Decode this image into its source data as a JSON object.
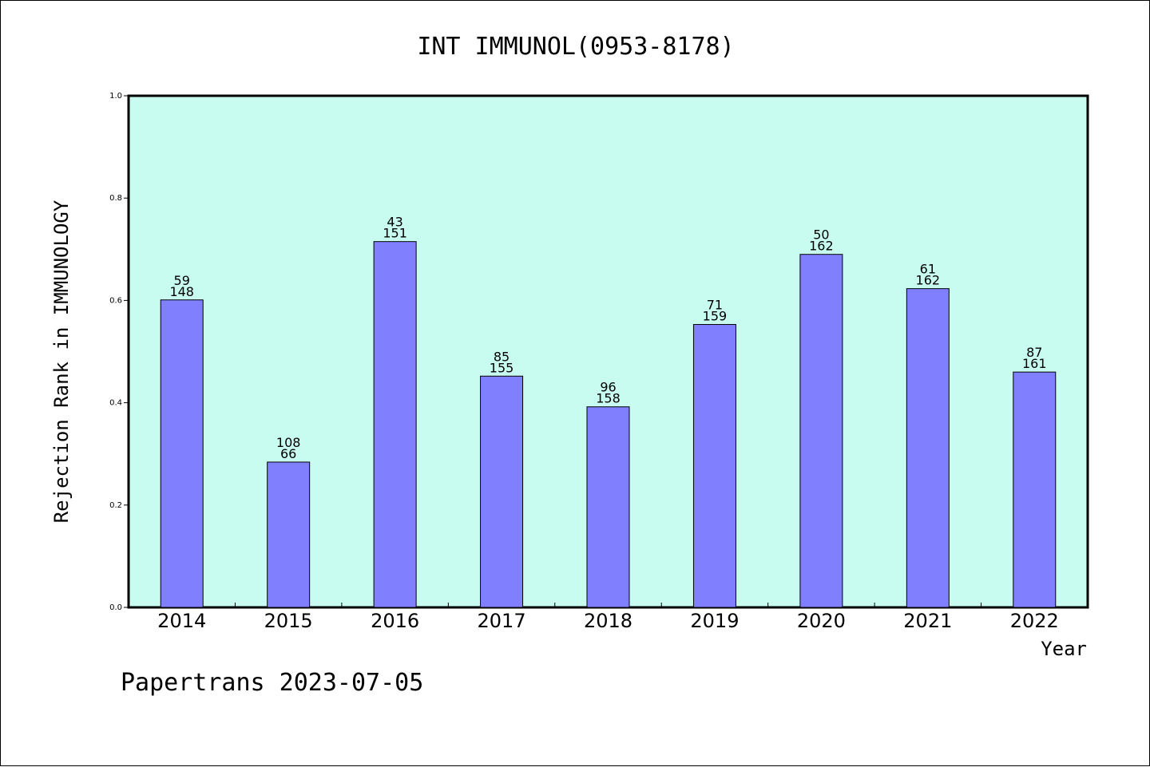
{
  "chart_data": {
    "type": "bar",
    "title": "INT IMMUNOL(0953-8178)",
    "xlabel": "Year",
    "ylabel": "Rejection Rank in IMMUNOLOGY",
    "ylim": [
      0,
      1.0
    ],
    "yticks": [
      "0.0",
      "0.2",
      "0.4",
      "0.6",
      "0.8",
      "1.0"
    ],
    "grid": false,
    "categories": [
      "2014",
      "2015",
      "2016",
      "2017",
      "2018",
      "2019",
      "2020",
      "2021",
      "2022"
    ],
    "values": [
      0.601,
      0.284,
      0.715,
      0.452,
      0.392,
      0.553,
      0.69,
      0.623,
      0.46
    ],
    "label_top": [
      "59",
      "108",
      "43",
      "85",
      "96",
      "71",
      "50",
      "61",
      "87"
    ],
    "label_bottom": [
      "148",
      "66",
      "151",
      "155",
      "158",
      "159",
      "162",
      "162",
      "161"
    ],
    "colors": {
      "plot_bg": "#c8fcf0",
      "bar": "#8080ff",
      "axis": "#000000"
    }
  },
  "footer": {
    "text": "Papertrans 2023-07-05"
  }
}
